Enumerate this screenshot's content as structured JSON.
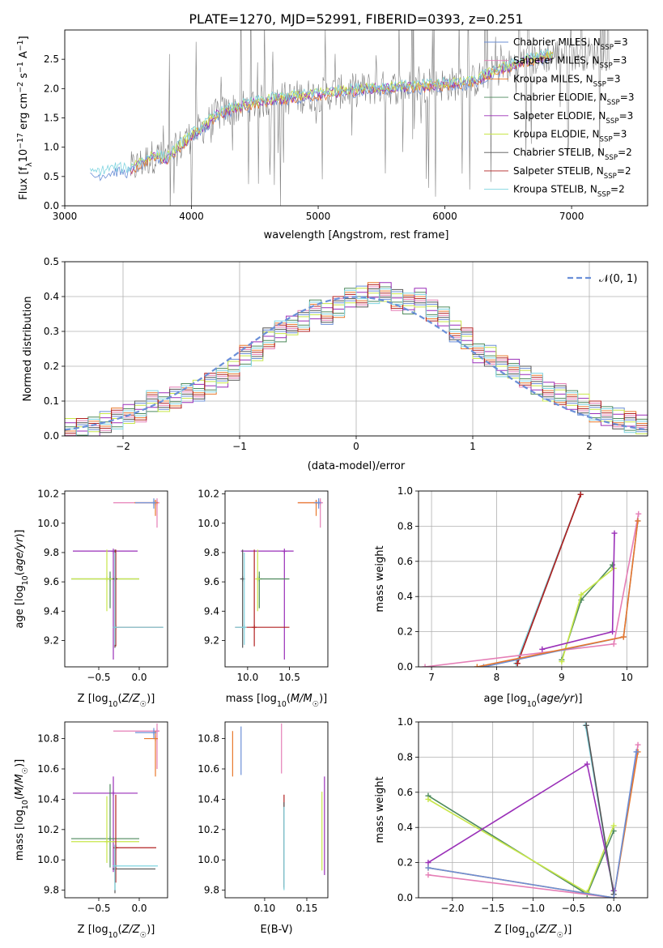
{
  "figure_title": "PLATE=1270, MJD=52991, FIBERID=0393, z=0.251",
  "colors": {
    "chabrier_miles": "#6b8fd6",
    "salpeter_miles": "#e57eb6",
    "kroupa_miles": "#e8782c",
    "chabrier_elodie": "#4e8a5c",
    "salpeter_elodie": "#9a2fb8",
    "kroupa_elodie": "#c7e64a",
    "chabrier_stelib": "#555555",
    "salpeter_stelib": "#b22222",
    "kroupa_stelib": "#7fd4e0",
    "data": "#808080",
    "grid": "#b0b0b0"
  },
  "chart_data": [
    {
      "id": "spectrum",
      "type": "line",
      "xlabel": "wavelength [Angstrom, rest frame]",
      "ylabel": "Flux [f_λ 10^-17 erg cm^-2 s^-1 A^-1]",
      "xlim": [
        3000,
        7600
      ],
      "ylim": [
        0,
        3.0
      ],
      "xticks": [
        3000,
        4000,
        5000,
        6000,
        7000
      ],
      "yticks": [
        0.0,
        0.5,
        1.0,
        1.5,
        2.0,
        2.5
      ],
      "grid": false,
      "legend_position": "top-right",
      "legend": [
        {
          "label": "Chabrier MILES, N_SSP=3",
          "color_key": "chabrier_miles"
        },
        {
          "label": "Salpeter MILES, N_SSP=3",
          "color_key": "salpeter_miles"
        },
        {
          "label": "Kroupa MILES, N_SSP=3",
          "color_key": "kroupa_miles"
        },
        {
          "label": "Chabrier ELODIE, N_SSP=3",
          "color_key": "chabrier_elodie"
        },
        {
          "label": "Salpeter ELODIE, N_SSP=3",
          "color_key": "salpeter_elodie"
        },
        {
          "label": "Kroupa ELODIE, N_SSP=3",
          "color_key": "kroupa_elodie"
        },
        {
          "label": "Chabrier STELIB, N_SSP=2",
          "color_key": "chabrier_stelib"
        },
        {
          "label": "Salpeter STELIB, N_SSP=2",
          "color_key": "salpeter_stelib"
        },
        {
          "label": "Kroupa STELIB, N_SSP=2",
          "color_key": "kroupa_stelib"
        }
      ],
      "continuum_wavelength": [
        3200,
        3400,
        3500,
        3600,
        3700,
        3800,
        3900,
        4000,
        4100,
        4200,
        4400,
        4600,
        4800,
        5000,
        5200,
        5400,
        5600,
        5800,
        6000,
        6200,
        6400,
        6600,
        6800,
        7000,
        7200,
        7280
      ],
      "continuum_flux": [
        0.52,
        0.62,
        0.6,
        0.72,
        0.85,
        0.8,
        1.0,
        1.2,
        1.35,
        1.55,
        1.7,
        1.8,
        1.85,
        1.9,
        1.95,
        2.0,
        2.02,
        2.03,
        2.07,
        2.1,
        2.3,
        2.45,
        2.55,
        2.6,
        2.6,
        2.6
      ],
      "data_wavelength_range": [
        3520,
        7300
      ]
    },
    {
      "id": "residuals",
      "type": "histogram",
      "xlabel": "(data-model)/error",
      "ylabel": "Normed distribution",
      "xlim": [
        -2.5,
        2.5
      ],
      "ylim": [
        0,
        0.5
      ],
      "xticks": [
        -2,
        -1,
        0,
        1,
        2
      ],
      "yticks": [
        0.0,
        0.1,
        0.2,
        0.3,
        0.4,
        0.5
      ],
      "grid": true,
      "legend_position": "top-right",
      "legend_label": "𝒩(0, 1)",
      "bin_width": 0.1,
      "bin_start": -2.5,
      "values": [
        0.02,
        0.02,
        0.03,
        0.04,
        0.05,
        0.06,
        0.07,
        0.1,
        0.1,
        0.11,
        0.12,
        0.13,
        0.15,
        0.17,
        0.19,
        0.23,
        0.24,
        0.28,
        0.3,
        0.32,
        0.33,
        0.36,
        0.35,
        0.37,
        0.4,
        0.4,
        0.41,
        0.41,
        0.39,
        0.38,
        0.4,
        0.36,
        0.34,
        0.3,
        0.28,
        0.24,
        0.23,
        0.2,
        0.19,
        0.17,
        0.15,
        0.13,
        0.12,
        0.1,
        0.09,
        0.07,
        0.06,
        0.05,
        0.04,
        0.03
      ]
    },
    {
      "id": "age_vs_Z",
      "type": "errorbar",
      "xlabel": "Z [log10(Z/Z☉)]",
      "ylabel": "age [log10(age/yr)]",
      "xlim": [
        -0.92,
        0.35
      ],
      "ylim": [
        9.02,
        10.22
      ],
      "xticks": [
        -0.5,
        0.0
      ],
      "yticks": [
        9.2,
        9.4,
        9.6,
        9.8,
        10.0,
        10.2
      ],
      "grid": false,
      "points": [
        {
          "c": "salpeter_miles",
          "x": 0.22,
          "y": 10.14,
          "xl": -0.32,
          "xh": 0.25,
          "yl": 9.97,
          "yh": 10.17
        },
        {
          "c": "kroupa_miles",
          "x": 0.2,
          "y": 10.14,
          "xl": -0.06,
          "xh": 0.23,
          "yl": 10.05,
          "yh": 10.16
        },
        {
          "c": "chabrier_miles",
          "x": 0.18,
          "y": 10.14,
          "xl": -0.05,
          "xh": 0.2,
          "yl": 10.1,
          "yh": 10.17
        },
        {
          "c": "salpeter_elodie",
          "x": -0.32,
          "y": 9.81,
          "xl": -0.82,
          "xh": -0.02,
          "yl": 9.07,
          "yh": 9.81
        },
        {
          "c": "chabrier_elodie",
          "x": -0.36,
          "y": 9.62,
          "xl": -0.84,
          "xh": 0.0,
          "yl": 9.42,
          "yh": 9.67
        },
        {
          "c": "kroupa_elodie",
          "x": -0.4,
          "y": 9.62,
          "xl": -0.84,
          "xh": 0.0,
          "yl": 9.4,
          "yh": 9.82
        },
        {
          "c": "chabrier_stelib",
          "x": -0.3,
          "y": 9.62,
          "xl": -0.3,
          "xh": -0.3,
          "yl": 9.15,
          "yh": 9.82
        },
        {
          "c": "salpeter_stelib",
          "x": -0.29,
          "y": 9.29,
          "xl": -0.29,
          "xh": 0.29,
          "yl": 9.16,
          "yh": 9.82
        },
        {
          "c": "kroupa_stelib",
          "x": -0.3,
          "y": 9.29,
          "xl": -0.3,
          "xh": 0.3,
          "yl": 9.17,
          "yh": 9.8
        }
      ]
    },
    {
      "id": "age_vs_mass",
      "type": "errorbar",
      "xlabel": "mass [log10(M/M☉)]",
      "ylabel": "",
      "xlim": [
        9.73,
        10.96
      ],
      "ylim": [
        9.02,
        10.22
      ],
      "xticks": [
        10.0,
        10.5
      ],
      "yticks": [
        9.2,
        9.4,
        9.6,
        9.8,
        10.0,
        10.2
      ],
      "grid": false,
      "points": [
        {
          "c": "salpeter_miles",
          "x": 10.87,
          "y": 10.14,
          "xl": 10.6,
          "xh": 10.9,
          "yl": 9.97,
          "yh": 10.17
        },
        {
          "c": "kroupa_miles",
          "x": 10.82,
          "y": 10.14,
          "xl": 10.6,
          "xh": 10.85,
          "yl": 10.05,
          "yh": 10.16
        },
        {
          "c": "chabrier_miles",
          "x": 10.85,
          "y": 10.14,
          "xl": 10.8,
          "xh": 10.87,
          "yl": 10.1,
          "yh": 10.17
        },
        {
          "c": "salpeter_elodie",
          "x": 10.44,
          "y": 9.81,
          "xl": 9.92,
          "xh": 10.55,
          "yl": 9.07,
          "yh": 9.81
        },
        {
          "c": "chabrier_elodie",
          "x": 10.14,
          "y": 9.62,
          "xl": 10.14,
          "xh": 10.5,
          "yl": 9.42,
          "yh": 9.67
        },
        {
          "c": "kroupa_elodie",
          "x": 10.12,
          "y": 9.62,
          "xl": 10.12,
          "xh": 10.12,
          "yl": 9.4,
          "yh": 9.82
        },
        {
          "c": "chabrier_stelib",
          "x": 9.94,
          "y": 9.62,
          "xl": 9.94,
          "xh": 9.94,
          "yl": 9.15,
          "yh": 9.82
        },
        {
          "c": "salpeter_stelib",
          "x": 10.08,
          "y": 9.29,
          "xl": 9.85,
          "xh": 10.5,
          "yl": 9.16,
          "yh": 9.82
        },
        {
          "c": "kroupa_stelib",
          "x": 9.96,
          "y": 9.29,
          "xl": 9.85,
          "xh": 9.97,
          "yl": 9.17,
          "yh": 9.8
        }
      ]
    },
    {
      "id": "mass_weight_vs_age",
      "type": "line",
      "xlabel": "age [log10(age/yr)]",
      "ylabel": "mass weight",
      "xlim": [
        6.8,
        10.32
      ],
      "ylim": [
        0,
        1.0
      ],
      "xticks": [
        7,
        8,
        9,
        10
      ],
      "yticks": [
        0.0,
        0.2,
        0.4,
        0.6,
        0.8,
        1.0
      ],
      "grid": true,
      "series": [
        {
          "c": "kroupa_stelib",
          "x": [
            8.3,
            9.29
          ],
          "y": [
            0.02,
            0.98
          ]
        },
        {
          "c": "chabrier_stelib",
          "x": [
            8.32,
            9.29
          ],
          "y": [
            0.02,
            0.98
          ]
        },
        {
          "c": "salpeter_stelib",
          "x": [
            8.32,
            9.29
          ],
          "y": [
            0.02,
            0.98
          ]
        },
        {
          "c": "chabrier_elodie",
          "x": [
            9.0,
            9.3,
            9.78
          ],
          "y": [
            0.04,
            0.38,
            0.58
          ]
        },
        {
          "c": "kroupa_elodie",
          "x": [
            9.0,
            9.3,
            9.8
          ],
          "y": [
            0.03,
            0.41,
            0.56
          ]
        },
        {
          "c": "salpeter_elodie",
          "x": [
            8.7,
            9.78,
            9.81
          ],
          "y": [
            0.1,
            0.2,
            0.76
          ]
        },
        {
          "c": "salpeter_miles",
          "x": [
            6.9,
            9.8,
            10.18
          ],
          "y": [
            0.0,
            0.13,
            0.87
          ]
        },
        {
          "c": "chabrier_miles",
          "x": [
            7.8,
            9.95,
            10.17
          ],
          "y": [
            0.0,
            0.17,
            0.83
          ]
        },
        {
          "c": "kroupa_miles",
          "x": [
            7.7,
            9.95,
            10.17
          ],
          "y": [
            0.0,
            0.17,
            0.83
          ]
        }
      ]
    },
    {
      "id": "mass_vs_Z",
      "type": "errorbar",
      "xlabel": "Z [log10(Z/Z☉)]",
      "ylabel": "mass [log10(M/M☉)]",
      "xlim": [
        -0.92,
        0.35
      ],
      "ylim": [
        9.75,
        10.91
      ],
      "xticks": [
        -0.5,
        0.0
      ],
      "yticks": [
        9.8,
        10.0,
        10.2,
        10.4,
        10.6,
        10.8
      ],
      "grid": false,
      "points": [
        {
          "c": "salpeter_miles",
          "x": 0.22,
          "y": 10.85,
          "xl": -0.32,
          "xh": 0.25,
          "yl": 10.6,
          "yh": 10.9
        },
        {
          "c": "kroupa_miles",
          "x": 0.2,
          "y": 10.8,
          "xl": 0.06,
          "xh": 0.23,
          "yl": 10.55,
          "yh": 10.85
        },
        {
          "c": "chabrier_miles",
          "x": 0.18,
          "y": 10.84,
          "xl": -0.05,
          "xh": 0.2,
          "yl": 10.8,
          "yh": 10.87
        },
        {
          "c": "salpeter_elodie",
          "x": -0.32,
          "y": 10.44,
          "xl": -0.82,
          "xh": -0.02,
          "yl": 9.92,
          "yh": 10.55
        },
        {
          "c": "chabrier_elodie",
          "x": -0.36,
          "y": 10.14,
          "xl": -0.84,
          "xh": 0.0,
          "yl": 9.95,
          "yh": 10.5
        },
        {
          "c": "kroupa_elodie",
          "x": -0.4,
          "y": 10.12,
          "xl": -0.84,
          "xh": 0.0,
          "yl": 9.98,
          "yh": 10.42
        },
        {
          "c": "chabrier_stelib",
          "x": -0.3,
          "y": 9.94,
          "xl": -0.3,
          "xh": 0.2,
          "yl": 9.78,
          "yh": 10.1
        },
        {
          "c": "salpeter_stelib",
          "x": -0.29,
          "y": 10.08,
          "xl": -0.29,
          "xh": 0.21,
          "yl": 9.85,
          "yh": 10.43
        },
        {
          "c": "kroupa_stelib",
          "x": -0.3,
          "y": 9.96,
          "xl": -0.3,
          "xh": 0.23,
          "yl": 9.8,
          "yh": 10.1
        }
      ]
    },
    {
      "id": "mass_vs_EBV",
      "type": "errorbar",
      "xlabel": "E(B-V)",
      "ylabel": "",
      "xlim": [
        0.053,
        0.175
      ],
      "ylim": [
        9.75,
        10.91
      ],
      "xticks": [
        0.1,
        0.15
      ],
      "yticks": [
        9.8,
        10.0,
        10.2,
        10.4,
        10.6,
        10.8
      ],
      "grid": false,
      "points": [
        {
          "c": "kroupa_miles",
          "x": 0.062,
          "y": 10.7,
          "xl": 0.062,
          "xh": 0.062,
          "yl": 10.55,
          "yh": 10.85
        },
        {
          "c": "chabrier_miles",
          "x": 0.072,
          "y": 10.72,
          "xl": 0.072,
          "xh": 0.072,
          "yl": 10.56,
          "yh": 10.88
        },
        {
          "c": "salpeter_miles",
          "x": 0.12,
          "y": 10.72,
          "xl": 0.12,
          "xh": 0.12,
          "yl": 10.57,
          "yh": 10.9
        },
        {
          "c": "salpeter_stelib",
          "x": 0.123,
          "y": 10.1,
          "xl": 0.123,
          "xh": 0.123,
          "yl": 9.82,
          "yh": 10.43
        },
        {
          "c": "chabrier_stelib",
          "x": 0.123,
          "y": 10.05,
          "xl": 0.123,
          "xh": 0.123,
          "yl": 9.81,
          "yh": 10.38
        },
        {
          "c": "kroupa_stelib",
          "x": 0.123,
          "y": 10.0,
          "xl": 0.123,
          "xh": 0.123,
          "yl": 9.8,
          "yh": 10.35
        },
        {
          "c": "kroupa_elodie",
          "x": 0.168,
          "y": 10.15,
          "xl": 0.168,
          "xh": 0.168,
          "yl": 9.93,
          "yh": 10.45
        },
        {
          "c": "salpeter_elodie",
          "x": 0.171,
          "y": 10.2,
          "xl": 0.171,
          "xh": 0.171,
          "yl": 9.9,
          "yh": 10.55
        }
      ]
    },
    {
      "id": "mass_weight_vs_Z",
      "type": "line",
      "xlabel": "Z [log10(Z/Z☉)]",
      "ylabel": "mass weight",
      "xlim": [
        -2.42,
        0.42
      ],
      "ylim": [
        0,
        1.0
      ],
      "xticks": [
        -2.0,
        -1.5,
        -1.0,
        -0.5,
        0.0
      ],
      "yticks": [
        0.0,
        0.2,
        0.4,
        0.6,
        0.8,
        1.0
      ],
      "grid": true,
      "series": [
        {
          "c": "chabrier_elodie",
          "x": [
            -2.3,
            -0.33,
            0.0
          ],
          "y": [
            0.58,
            0.02,
            0.38
          ]
        },
        {
          "c": "kroupa_elodie",
          "x": [
            -2.3,
            -0.33,
            0.0
          ],
          "y": [
            0.56,
            0.03,
            0.41
          ]
        },
        {
          "c": "salpeter_elodie",
          "x": [
            -2.3,
            -0.33,
            0.0
          ],
          "y": [
            0.2,
            0.76,
            0.04
          ]
        },
        {
          "c": "kroupa_stelib",
          "x": [
            -0.35,
            0.0
          ],
          "y": [
            0.98,
            0.02
          ]
        },
        {
          "c": "chabrier_stelib",
          "x": [
            -0.34,
            0.0
          ],
          "y": [
            0.98,
            0.02
          ]
        },
        {
          "c": "salpeter_miles",
          "x": [
            -2.3,
            0.0,
            0.3
          ],
          "y": [
            0.13,
            0.0,
            0.87
          ]
        },
        {
          "c": "kroupa_miles",
          "x": [
            -2.3,
            0.0,
            0.3
          ],
          "y": [
            0.17,
            0.0,
            0.83
          ]
        },
        {
          "c": "chabrier_miles",
          "x": [
            -2.3,
            0.0,
            0.28
          ],
          "y": [
            0.17,
            0.0,
            0.83
          ]
        }
      ]
    }
  ]
}
